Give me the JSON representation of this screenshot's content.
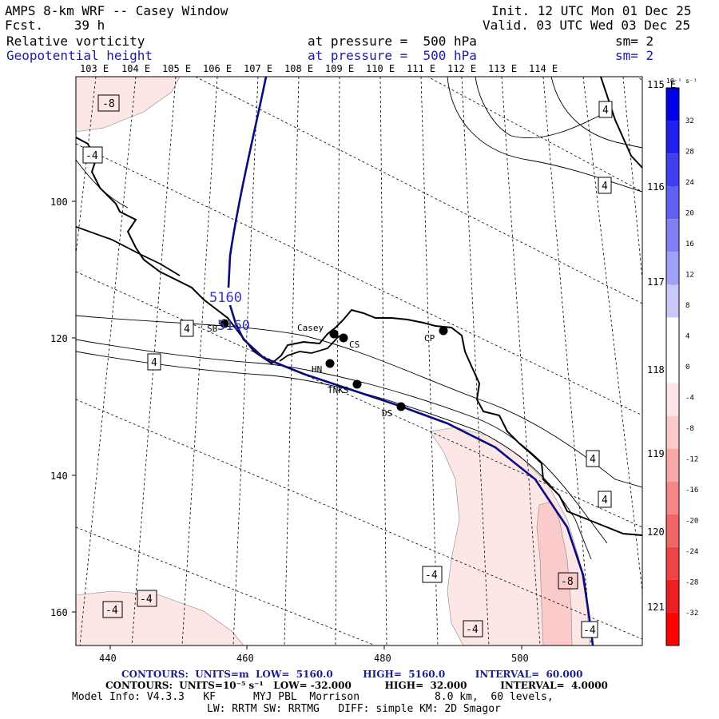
{
  "header": {
    "title": "AMPS 8-km WRF -- Casey Window",
    "forecast": "Fcst.    39 h",
    "init": "Init. 12 UTC Mon 01 Dec 25",
    "valid": "Valid. 03 UTC Wed 03 Dec 25",
    "field1": {
      "name": "Relative vorticity",
      "pressure": "at pressure =  500 hPa",
      "sm": "sm= 2"
    },
    "field2": {
      "name": "Geopotential height",
      "pressure": "at pressure =  500 hPa",
      "sm": "sm= 2"
    }
  },
  "map": {
    "lon_labels_top": [
      "103 E",
      "104 E",
      "105 E",
      "106 E",
      "107 E",
      "108 E",
      "109 E",
      "110 E",
      "111 E",
      "112 E",
      "113 E",
      "114 E"
    ],
    "lat_labels_right": [
      "115 E",
      "116 E",
      "117 E",
      "118 E",
      "119 E",
      "120 E",
      "121 E"
    ],
    "x_ticks": [
      "440",
      "460",
      "480",
      "500"
    ],
    "y_ticks": [
      "100",
      "120",
      "140",
      "160"
    ],
    "stations": [
      {
        "id": "SB",
        "label": "SB"
      },
      {
        "id": "Casey",
        "label": "Casey"
      },
      {
        "id": "CS",
        "label": "CS"
      },
      {
        "id": "CP",
        "label": "CP"
      },
      {
        "id": "HN",
        "label": "HN"
      },
      {
        "id": "TNKS",
        "label": "TNKS"
      },
      {
        "id": "DS",
        "label": "DS"
      }
    ],
    "height_contour_labels": [
      "5160",
      "5160"
    ],
    "vorticity_labels": [
      "-8",
      "-4",
      "4",
      "4",
      "4",
      "4",
      "4",
      "-4",
      "-8",
      "-4",
      "-4",
      "-4",
      "-4",
      "-4"
    ]
  },
  "colorbar": {
    "unit": "10⁻⁵ s⁻¹",
    "ticks": [
      "32",
      "28",
      "24",
      "20",
      "16",
      "12",
      "8",
      "4",
      "0",
      "-4",
      "-8",
      "-12",
      "-16",
      "-20",
      "-24",
      "-28",
      "-32"
    ],
    "colors": [
      "#0000e6",
      "#2020ec",
      "#4040f0",
      "#6060f2",
      "#8080f4",
      "#a0a0f8",
      "#c8c8fc",
      "#ffffff",
      "#ffffff",
      "#fde6e6",
      "#fbcaca",
      "#f8a8a8",
      "#f48888",
      "#f06666",
      "#ee4444",
      "#ec2020",
      "#ff0000"
    ]
  },
  "footer": {
    "contours1": "CONTOURS:  UNITS=m  LOW=  5160.0         HIGH=  5160.0         INTERVAL=  60.000",
    "contours2": "CONTOURS:  UNITS=10⁻⁵ s⁻¹   LOW= -32.000          HIGH=  32.000          INTERVAL=  4.0000",
    "model1": "Model Info: V4.3.3   KF      MYJ PBL  Morrison            8.0 km,  60 levels,",
    "model2": "LW: RRTM SW: RRTMG   DIFF: simple KM: 2D Smagor"
  }
}
